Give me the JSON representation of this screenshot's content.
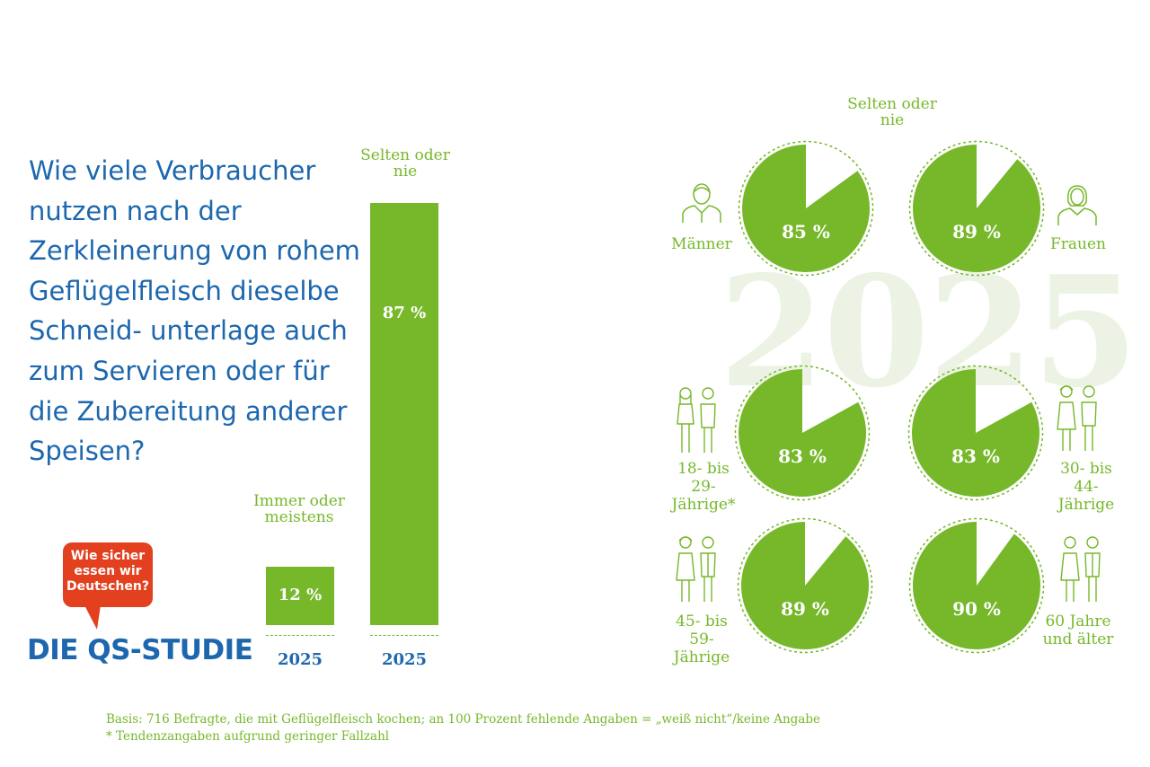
{
  "question": "Wie viele Verbraucher nutzen nach der Zerkleinerung von rohem Geflügelfleisch dieselbe Schneid- unterlage auch zum Servieren oder für die Zubereitung anderer Speisen?",
  "logo": {
    "bubble": "Wie sicher essen wir Deutschen?",
    "brand": "DIE QS-STUDIE"
  },
  "watermark": "2025",
  "right_header": "Selten oder nie",
  "footnotes": [
    "Basis: 716 Befragte, die mit Geflügelfleisch kochen; an 100 Prozent fehlende Angaben = „weiß nicht“/keine Angabe",
    "* Tendenzangaben aufgrund geringer Fallzahl"
  ],
  "colors": {
    "green": "#76b82a",
    "blue": "#1d67ae",
    "red": "#e2401f"
  },
  "chart_data": [
    {
      "type": "bar",
      "categories": [
        "Immer oder meistens",
        "Selten oder nie"
      ],
      "x_labels": [
        "2025",
        "2025"
      ],
      "values": [
        12,
        87
      ],
      "value_labels": [
        "12 %",
        "87 %"
      ],
      "unit": "%"
    },
    {
      "type": "pie",
      "title": "Selten oder nie",
      "slices": [
        {
          "group": "Männer",
          "value": 85,
          "label": "85 %",
          "icon": "man-icon"
        },
        {
          "group": "Frauen",
          "value": 89,
          "label": "89 %",
          "icon": "woman-icon"
        },
        {
          "group": "18- bis 29-Jährige*",
          "value": 83,
          "label": "83 %",
          "icon": "young-couple-icon"
        },
        {
          "group": "30- bis 44-Jährige",
          "value": 83,
          "label": "83 %",
          "icon": "couple-icon"
        },
        {
          "group": "45- bis 59-Jährige",
          "value": 89,
          "label": "89 %",
          "icon": "couple-icon"
        },
        {
          "group": "60 Jahre und älter",
          "value": 90,
          "label": "90 %",
          "icon": "senior-couple-icon"
        }
      ]
    }
  ]
}
